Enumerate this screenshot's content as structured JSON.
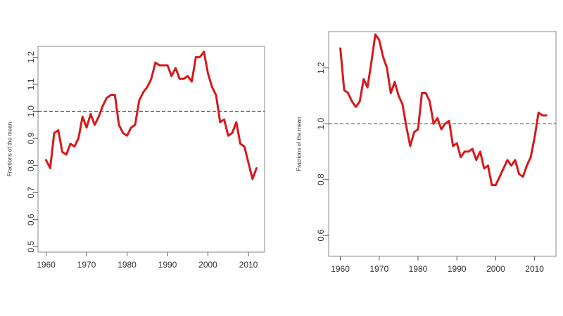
{
  "chart_data": [
    {
      "type": "line",
      "ylabel": "Fractions of the mean",
      "xlabel": "",
      "xlim": [
        1958,
        2014
      ],
      "ylim": [
        0.48,
        1.24
      ],
      "xticks": [
        1960,
        1970,
        1980,
        1990,
        2000,
        2010
      ],
      "yticks": [
        0.5,
        0.6,
        0.7,
        0.8,
        0.9,
        1.0,
        1.1,
        1.2
      ],
      "ytick_labels": [
        "0.5",
        "0.6",
        "0.7",
        "0.8",
        "0.9",
        "1.0",
        "1.1",
        "1.2"
      ],
      "reference_line": 1.0,
      "grid": false,
      "series": [
        {
          "color": "#d7191c",
          "x": [
            1960,
            1961,
            1962,
            1963,
            1964,
            1965,
            1966,
            1967,
            1968,
            1969,
            1970,
            1971,
            1972,
            1973,
            1974,
            1975,
            1976,
            1977,
            1978,
            1979,
            1980,
            1981,
            1982,
            1983,
            1984,
            1985,
            1986,
            1987,
            1988,
            1989,
            1990,
            1991,
            1992,
            1993,
            1994,
            1995,
            1996,
            1997,
            1998,
            1999,
            2000,
            2001,
            2002,
            2003,
            2004,
            2005,
            2006,
            2007,
            2008,
            2009,
            2010,
            2011,
            2012
          ],
          "y": [
            0.82,
            0.79,
            0.92,
            0.93,
            0.85,
            0.84,
            0.88,
            0.87,
            0.9,
            0.98,
            0.94,
            0.99,
            0.95,
            0.98,
            1.02,
            1.05,
            1.06,
            1.06,
            0.95,
            0.92,
            0.91,
            0.94,
            0.95,
            1.04,
            1.07,
            1.09,
            1.12,
            1.18,
            1.17,
            1.17,
            1.17,
            1.13,
            1.16,
            1.12,
            1.12,
            1.13,
            1.11,
            1.2,
            1.2,
            1.22,
            1.14,
            1.09,
            1.06,
            0.96,
            0.97,
            0.91,
            0.92,
            0.96,
            0.88,
            0.87,
            0.81,
            0.75,
            0.79
          ]
        }
      ]
    },
    {
      "type": "line",
      "ylabel": "Fractions of the mean",
      "xlabel": "",
      "xlim": [
        1957,
        2015.5
      ],
      "ylim": [
        0.525,
        1.33
      ],
      "xticks": [
        1960,
        1970,
        1980,
        1990,
        2000,
        2010
      ],
      "yticks": [
        0.6,
        0.8,
        1.0,
        1.2
      ],
      "ytick_labels": [
        "0.6",
        "0.8",
        "1.0",
        "1.2"
      ],
      "reference_line": 1.0,
      "grid": false,
      "series": [
        {
          "color": "#d7191c",
          "x": [
            1960,
            1961,
            1962,
            1963,
            1964,
            1965,
            1966,
            1967,
            1968,
            1969,
            1970,
            1971,
            1972,
            1973,
            1974,
            1975,
            1976,
            1977,
            1978,
            1979,
            1980,
            1981,
            1982,
            1983,
            1984,
            1985,
            1986,
            1987,
            1988,
            1989,
            1990,
            1991,
            1992,
            1993,
            1994,
            1995,
            1996,
            1997,
            1998,
            1999,
            2000,
            2001,
            2002,
            2003,
            2004,
            2005,
            2006,
            2007,
            2008,
            2009,
            2010,
            2011,
            2012,
            2013
          ],
          "y": [
            1.27,
            1.12,
            1.11,
            1.08,
            1.06,
            1.08,
            1.16,
            1.13,
            1.22,
            1.32,
            1.3,
            1.24,
            1.2,
            1.11,
            1.15,
            1.1,
            1.07,
            0.99,
            0.92,
            0.97,
            0.98,
            1.11,
            1.11,
            1.08,
            1.0,
            1.02,
            0.98,
            1.0,
            1.01,
            0.92,
            0.93,
            0.88,
            0.9,
            0.9,
            0.91,
            0.87,
            0.9,
            0.84,
            0.85,
            0.78,
            0.78,
            0.81,
            0.84,
            0.87,
            0.85,
            0.87,
            0.82,
            0.81,
            0.85,
            0.88,
            0.95,
            1.04,
            1.03,
            1.03
          ]
        }
      ]
    }
  ],
  "panels": [
    {
      "name": "left-panel"
    },
    {
      "name": "right-panel"
    }
  ]
}
